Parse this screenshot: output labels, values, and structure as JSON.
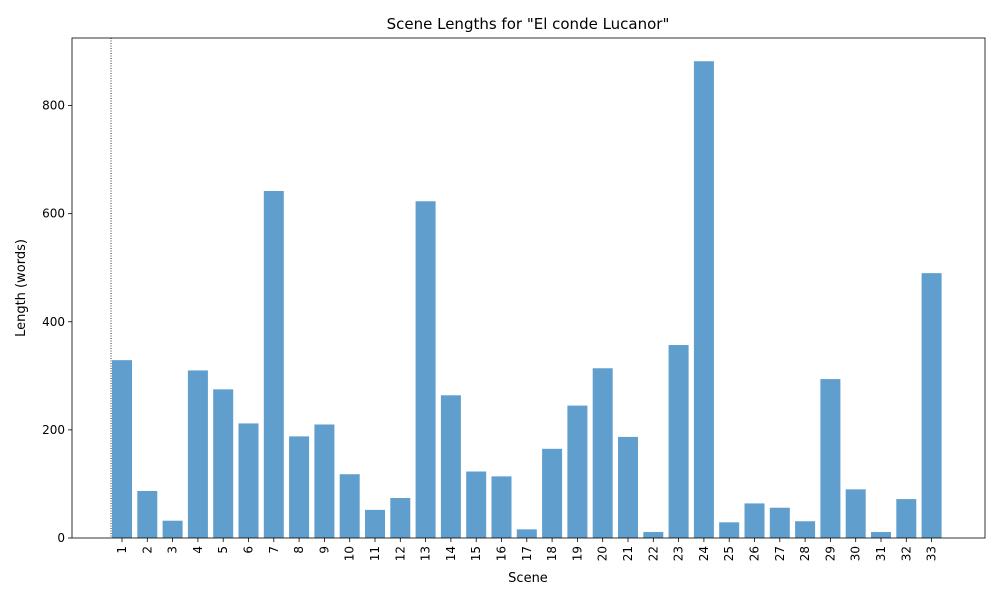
{
  "chart_data": {
    "type": "bar",
    "title": "Scene Lengths for \"El conde Lucanor\"",
    "xlabel": "Scene",
    "ylabel": "Length (words)",
    "categories": [
      "1",
      "2",
      "3",
      "4",
      "5",
      "6",
      "7",
      "8",
      "9",
      "10",
      "11",
      "12",
      "13",
      "14",
      "15",
      "16",
      "17",
      "18",
      "19",
      "20",
      "21",
      "22",
      "23",
      "24",
      "25",
      "26",
      "27",
      "28",
      "29",
      "30",
      "31",
      "32",
      "33"
    ],
    "values": [
      329,
      87,
      32,
      310,
      275,
      212,
      642,
      188,
      210,
      118,
      52,
      74,
      623,
      264,
      123,
      114,
      16,
      165,
      245,
      314,
      187,
      11,
      357,
      882,
      29,
      64,
      56,
      31,
      294,
      90,
      11,
      72,
      490
    ],
    "ylim": [
      0,
      925
    ],
    "yticks": [
      0,
      200,
      400,
      600,
      800
    ],
    "bar_color": "#5f9ecd",
    "grid": false,
    "reference_line": {
      "x_category": "1",
      "style": "dotted",
      "color": "#000000"
    }
  }
}
